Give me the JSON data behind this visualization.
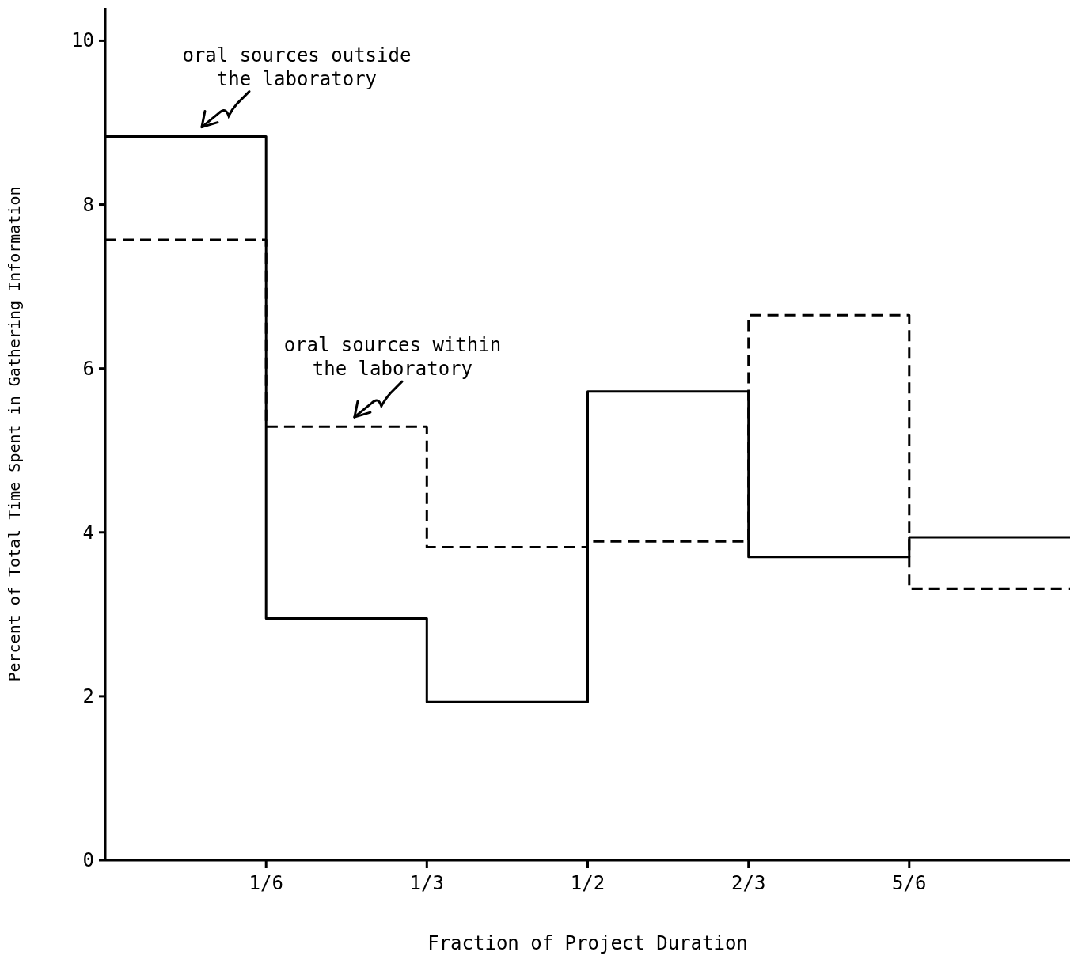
{
  "chart_data": {
    "type": "step",
    "xlabel": "Fraction of Project Duration",
    "ylabel": "Percent of Total Time Spent in Gathering Information",
    "x": [
      0,
      0.1667,
      0.3333,
      0.5,
      0.6667,
      0.8333,
      1
    ],
    "series": [
      {
        "name": "oral sources outside the laboratory",
        "color": "#000000",
        "line_style": "solid",
        "values": [
          8.83,
          2.95,
          1.93,
          5.72,
          3.7,
          3.94,
          3.94
        ]
      },
      {
        "name": "oral sources within the laboratory",
        "color": "#000000",
        "line_style": "dashed",
        "values": [
          7.57,
          5.29,
          3.82,
          3.89,
          6.65,
          3.31,
          3.31
        ]
      }
    ],
    "xlim": [
      0,
      1
    ],
    "xticks": [
      {
        "value": 0.1667,
        "label": "1/6"
      },
      {
        "value": 0.3333,
        "label": "1/3"
      },
      {
        "value": 0.5,
        "label": "1/2"
      },
      {
        "value": 0.6667,
        "label": "2/3"
      },
      {
        "value": 0.8333,
        "label": "5/6"
      }
    ],
    "ylim": [
      0,
      10.4
    ],
    "yticks": [
      0,
      2,
      4,
      6,
      8,
      10
    ],
    "grid": false,
    "legend": false,
    "marker": "none"
  }
}
